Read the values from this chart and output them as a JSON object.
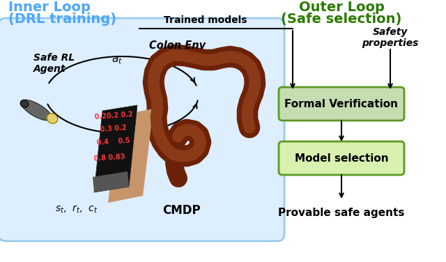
{
  "inner_loop_title_line1": "Inner Loop",
  "inner_loop_title_line2": "(DRL training)",
  "outer_loop_title_line1": "Outer Loop",
  "outer_loop_title_line2": "(Safe selection)",
  "safe_rl_agent_label": "Safe RL\nAgent",
  "colon_env_label": "Colon Env",
  "cmdp_label": "CMDP",
  "state_label": "$s_t$,  $r_t$,  $c_t$",
  "action_label": "$a_t$",
  "trained_models_label": "Trained models",
  "safety_properties_label": "Safety\nproperties",
  "formal_verification_label": "Formal Verification",
  "model_selection_label": "Model selection",
  "provable_safe_label": "Provable safe agents",
  "inner_loop_color": "#4da6ff",
  "outer_loop_color": "#2a7a00",
  "box_fill_fv": "#c5ddb0",
  "box_fill_ms": "#d8f0b0",
  "box_edge_color": "#5a9a20",
  "inner_bg_color": "#ddeeff",
  "inner_bg_edge": "#99ccee",
  "arrow_color": "#111111",
  "text_color": "#111111"
}
